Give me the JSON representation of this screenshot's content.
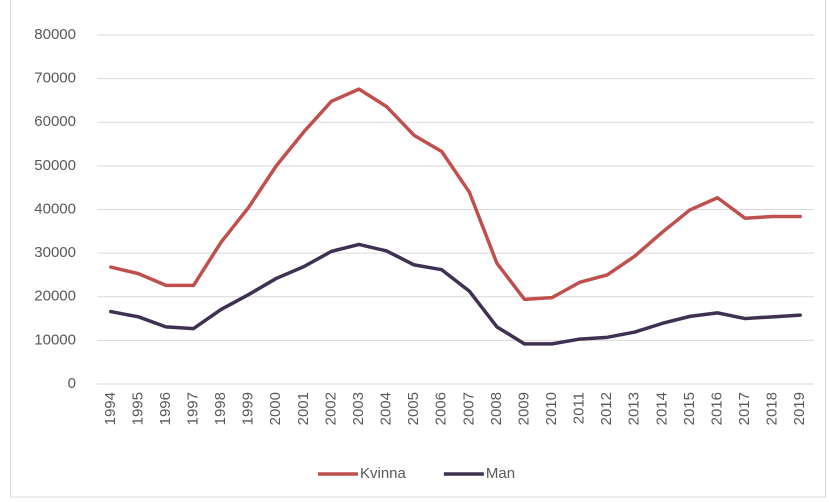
{
  "chart_data": {
    "type": "line",
    "categories": [
      "1994",
      "1995",
      "1996",
      "1997",
      "1998",
      "1999",
      "2000",
      "2001",
      "2002",
      "2003",
      "2004",
      "2005",
      "2006",
      "2007",
      "2008",
      "2009",
      "2010",
      "2011",
      "2012",
      "2013",
      "2014",
      "2015",
      "2016",
      "2017",
      "2018",
      "2019"
    ],
    "series": [
      {
        "name": "Kvinna",
        "color": "#c0504d",
        "values": [
          26800,
          25300,
          22600,
          22600,
          32500,
          40500,
          50000,
          57800,
          64800,
          67600,
          63600,
          57000,
          53300,
          44000,
          27700,
          19400,
          19800,
          23300,
          25000,
          29300,
          34800,
          39900,
          42700,
          38000,
          38400,
          38400
        ]
      },
      {
        "name": "Man",
        "color": "#403152",
        "values": [
          16600,
          15400,
          13100,
          12700,
          17100,
          20500,
          24200,
          26900,
          30400,
          32000,
          30500,
          27300,
          26200,
          21300,
          13100,
          9200,
          9200,
          10300,
          10700,
          11900,
          13900,
          15500,
          16300,
          15000,
          15400,
          15800
        ]
      }
    ],
    "ylim": [
      0,
      80000
    ],
    "yticks": [
      0,
      10000,
      20000,
      30000,
      40000,
      50000,
      60000,
      70000,
      80000
    ],
    "grid": true,
    "legend": "bottom"
  }
}
